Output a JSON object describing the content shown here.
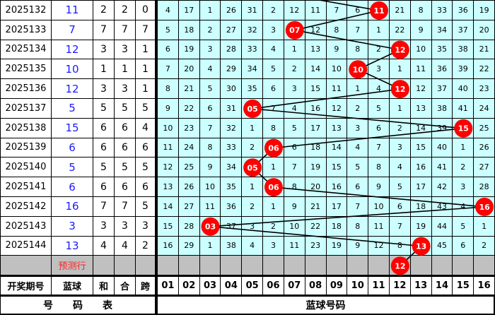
{
  "columns": {
    "period": "开奖期号",
    "blue": "蓝球",
    "sum": "和",
    "mod": "合",
    "span": "跨",
    "numbers": [
      "01",
      "02",
      "03",
      "04",
      "05",
      "06",
      "07",
      "08",
      "09",
      "10",
      "11",
      "12",
      "13",
      "14",
      "15",
      "16"
    ]
  },
  "footer": {
    "left": "号　　码　　表",
    "right": "蓝球号码"
  },
  "prediction_label": "预测行",
  "prediction_ball": "12",
  "colors": {
    "grid_bg": "#ccffff",
    "ball": "#ff0000",
    "blue_text": "#1a1aff",
    "prediction_bg": "#c0c0c0"
  },
  "rows": [
    {
      "period": "2025132",
      "blue": "11",
      "sum": "2",
      "mod": "2",
      "span": "0",
      "cells": [
        "4",
        "17",
        "1",
        "26",
        "31",
        "2",
        "12",
        "11",
        "7",
        "6",
        "11",
        "21",
        "8",
        "33",
        "36",
        "19"
      ]
    },
    {
      "period": "2025133",
      "blue": "7",
      "sum": "7",
      "mod": "7",
      "span": "7",
      "cells": [
        "5",
        "18",
        "2",
        "27",
        "32",
        "3",
        "07",
        "12",
        "8",
        "7",
        "1",
        "22",
        "9",
        "34",
        "37",
        "20"
      ]
    },
    {
      "period": "2025134",
      "blue": "12",
      "sum": "3",
      "mod": "3",
      "span": "1",
      "cells": [
        "6",
        "19",
        "3",
        "28",
        "33",
        "4",
        "1",
        "13",
        "9",
        "8",
        "2",
        "12",
        "10",
        "35",
        "38",
        "21"
      ]
    },
    {
      "period": "2025135",
      "blue": "10",
      "sum": "1",
      "mod": "1",
      "span": "1",
      "cells": [
        "7",
        "20",
        "4",
        "29",
        "34",
        "5",
        "2",
        "14",
        "10",
        "10",
        "3",
        "1",
        "11",
        "36",
        "39",
        "22"
      ]
    },
    {
      "period": "2025136",
      "blue": "12",
      "sum": "3",
      "mod": "3",
      "span": "1",
      "cells": [
        "8",
        "21",
        "5",
        "30",
        "35",
        "6",
        "3",
        "15",
        "11",
        "1",
        "4",
        "12",
        "12",
        "37",
        "40",
        "23"
      ]
    },
    {
      "period": "2025137",
      "blue": "5",
      "sum": "5",
      "mod": "5",
      "span": "5",
      "cells": [
        "9",
        "22",
        "6",
        "31",
        "05",
        "7",
        "4",
        "16",
        "12",
        "2",
        "5",
        "1",
        "13",
        "38",
        "41",
        "24"
      ]
    },
    {
      "period": "2025138",
      "blue": "15",
      "sum": "6",
      "mod": "6",
      "span": "4",
      "cells": [
        "10",
        "23",
        "7",
        "32",
        "1",
        "8",
        "5",
        "17",
        "13",
        "3",
        "6",
        "2",
        "14",
        "39",
        "15",
        "25"
      ]
    },
    {
      "period": "2025139",
      "blue": "6",
      "sum": "6",
      "mod": "6",
      "span": "6",
      "cells": [
        "11",
        "24",
        "8",
        "33",
        "2",
        "06",
        "6",
        "18",
        "14",
        "4",
        "7",
        "3",
        "15",
        "40",
        "1",
        "26"
      ]
    },
    {
      "period": "2025140",
      "blue": "5",
      "sum": "5",
      "mod": "5",
      "span": "5",
      "cells": [
        "12",
        "25",
        "9",
        "34",
        "05",
        "1",
        "7",
        "19",
        "15",
        "5",
        "8",
        "4",
        "16",
        "41",
        "2",
        "27"
      ]
    },
    {
      "period": "2025141",
      "blue": "6",
      "sum": "6",
      "mod": "6",
      "span": "6",
      "cells": [
        "13",
        "26",
        "10",
        "35",
        "1",
        "06",
        "8",
        "20",
        "16",
        "6",
        "9",
        "5",
        "17",
        "42",
        "3",
        "28"
      ]
    },
    {
      "period": "2025142",
      "blue": "16",
      "sum": "7",
      "mod": "7",
      "span": "5",
      "cells": [
        "14",
        "27",
        "11",
        "36",
        "2",
        "1",
        "9",
        "21",
        "17",
        "7",
        "10",
        "6",
        "18",
        "43",
        "4",
        "16"
      ]
    },
    {
      "period": "2025143",
      "blue": "3",
      "sum": "3",
      "mod": "3",
      "span": "3",
      "cells": [
        "15",
        "28",
        "03",
        "37",
        "3",
        "2",
        "10",
        "22",
        "18",
        "8",
        "11",
        "7",
        "19",
        "44",
        "5",
        "1"
      ]
    },
    {
      "period": "2025144",
      "blue": "13",
      "sum": "4",
      "mod": "4",
      "span": "2",
      "cells": [
        "16",
        "29",
        "1",
        "38",
        "4",
        "3",
        "11",
        "23",
        "19",
        "9",
        "12",
        "8",
        "13",
        "45",
        "6",
        "2"
      ]
    }
  ]
}
